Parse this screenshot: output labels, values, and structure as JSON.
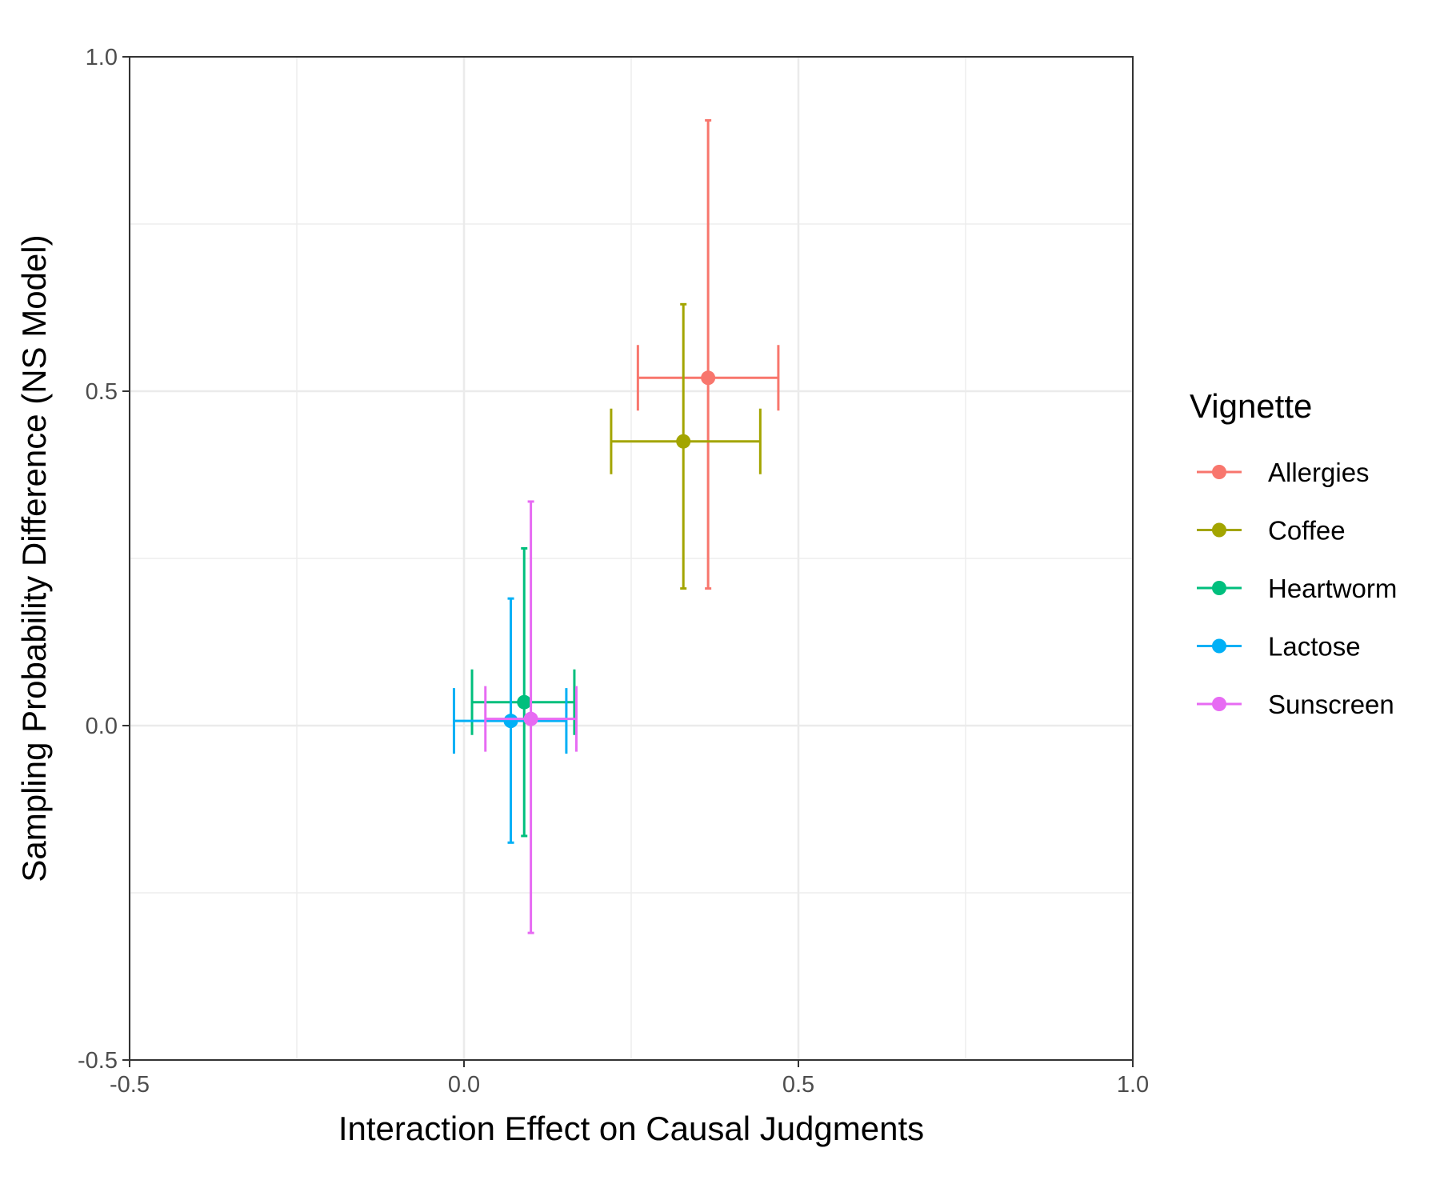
{
  "chart_data": {
    "type": "scatter",
    "title": "",
    "xlabel": "Interaction Effect on Causal Judgments",
    "ylabel": "Sampling Probability Difference (NS Model)",
    "xlim": [
      -0.5,
      1.0
    ],
    "ylim": [
      -0.5,
      1.0
    ],
    "x_ticks": [
      -0.5,
      0.0,
      0.5,
      1.0
    ],
    "y_ticks": [
      -0.5,
      0.0,
      0.5,
      1.0
    ],
    "x_tick_labels": [
      "-0.5",
      "0.0",
      "0.5",
      "1.0"
    ],
    "y_tick_labels": [
      "-0.5",
      "0.0",
      "0.5",
      "1.0"
    ],
    "minor_grid": [
      -0.25,
      0.25,
      0.75
    ],
    "grid": true,
    "legend_title": "Vignette",
    "legend_position": "right",
    "series": [
      {
        "name": "Allergies",
        "color": "#F8766D",
        "x": 0.365,
        "y": 0.52,
        "x_low": 0.26,
        "x_high": 0.47,
        "y_low": 0.205,
        "y_high": 0.905
      },
      {
        "name": "Coffee",
        "color": "#A3A500",
        "x": 0.328,
        "y": 0.425,
        "x_low": 0.22,
        "x_high": 0.443,
        "y_low": 0.205,
        "y_high": 0.63
      },
      {
        "name": "Heartworm",
        "color": "#00BF7D",
        "x": 0.09,
        "y": 0.035,
        "x_low": 0.012,
        "x_high": 0.165,
        "y_low": -0.165,
        "y_high": 0.265
      },
      {
        "name": "Lactose",
        "color": "#00B0F6",
        "x": 0.07,
        "y": 0.007,
        "x_low": -0.015,
        "x_high": 0.153,
        "y_low": -0.175,
        "y_high": 0.19
      },
      {
        "name": "Sunscreen",
        "color": "#E76BF3",
        "x": 0.1,
        "y": 0.01,
        "x_low": 0.032,
        "x_high": 0.168,
        "y_low": -0.31,
        "y_high": 0.335
      }
    ]
  }
}
